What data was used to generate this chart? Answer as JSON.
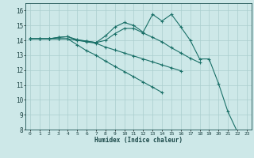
{
  "title": "",
  "xlabel": "Humidex (Indice chaleur)",
  "background_color": "#cde8e8",
  "grid_color": "#aacece",
  "line_color": "#1a7068",
  "x_values": [
    0,
    1,
    2,
    3,
    4,
    5,
    6,
    7,
    8,
    9,
    10,
    11,
    12,
    13,
    14,
    15,
    16,
    17,
    18,
    19,
    20,
    21,
    22,
    23
  ],
  "lines": [
    [
      14.1,
      14.1,
      14.1,
      14.2,
      14.25,
      14.0,
      13.95,
      13.85,
      14.3,
      14.9,
      15.2,
      15.0,
      14.55,
      15.75,
      15.3,
      15.75,
      14.9,
      14.0,
      12.75,
      12.75,
      11.1,
      9.2,
      7.85,
      null
    ],
    [
      14.1,
      14.1,
      14.1,
      14.2,
      14.25,
      14.05,
      13.95,
      13.85,
      14.0,
      14.45,
      14.8,
      14.8,
      14.5,
      14.2,
      13.9,
      13.5,
      13.15,
      12.8,
      12.5,
      null,
      null,
      null,
      null,
      null
    ],
    [
      14.1,
      14.1,
      14.1,
      14.1,
      14.1,
      14.0,
      13.9,
      13.8,
      13.55,
      13.35,
      13.15,
      12.95,
      12.75,
      12.55,
      12.35,
      12.15,
      11.95,
      null,
      null,
      null,
      null,
      null,
      null,
      null
    ],
    [
      14.1,
      14.1,
      14.1,
      14.1,
      14.1,
      13.7,
      13.3,
      13.0,
      12.6,
      12.25,
      11.9,
      11.55,
      11.2,
      10.85,
      10.5,
      null,
      null,
      null,
      null,
      null,
      null,
      null,
      null,
      null
    ]
  ],
  "ylim": [
    8,
    16.5
  ],
  "xlim": [
    -0.5,
    23.5
  ],
  "yticks": [
    8,
    9,
    10,
    11,
    12,
    13,
    14,
    15,
    16
  ],
  "xticks": [
    0,
    1,
    2,
    3,
    4,
    5,
    6,
    7,
    8,
    9,
    10,
    11,
    12,
    13,
    14,
    15,
    16,
    17,
    18,
    19,
    20,
    21,
    22,
    23
  ]
}
